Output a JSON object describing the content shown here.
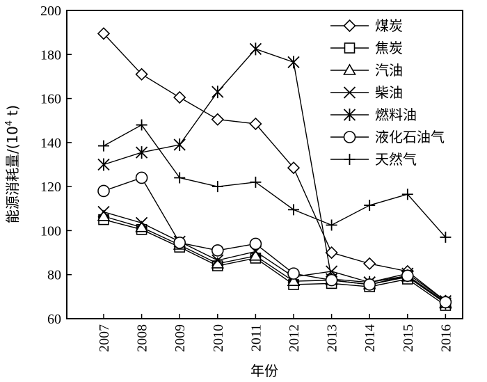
{
  "chart_data": {
    "type": "line",
    "xlabel": "年份",
    "ylabel_main": "能源消耗量/(10",
    "ylabel_sup": "4",
    "ylabel_unit": " t)",
    "ylim": [
      60,
      200
    ],
    "yticks": [
      60,
      80,
      100,
      120,
      140,
      160,
      180,
      200
    ],
    "x": [
      "2007",
      "2008",
      "2009",
      "2010",
      "2011",
      "2012",
      "2013",
      "2014",
      "2015",
      "2016"
    ],
    "legend_position": "top-right",
    "grid": false,
    "series": [
      {
        "name": "煤炭",
        "marker": "diamond",
        "values": [
          189.5,
          171,
          160.5,
          150.5,
          148.5,
          128.5,
          90,
          85,
          81.5,
          68
        ]
      },
      {
        "name": "焦炭",
        "marker": "square",
        "values": [
          105,
          100.5,
          92.5,
          84,
          87.5,
          75.5,
          76,
          74.5,
          78,
          66
        ]
      },
      {
        "name": "汽油",
        "marker": "triangle",
        "values": [
          106.5,
          101.5,
          93.5,
          85,
          88.5,
          77,
          77.5,
          75.5,
          79,
          67
        ]
      },
      {
        "name": "柴油",
        "marker": "x",
        "values": [
          108.5,
          103.5,
          95,
          86.5,
          90.5,
          79,
          81.5,
          76.5,
          80.5,
          68
        ]
      },
      {
        "name": "燃料油",
        "marker": "asterisk",
        "values": [
          130,
          135.5,
          139,
          163,
          182.5,
          176.5,
          78,
          76.5,
          79.5,
          67
        ]
      },
      {
        "name": "液化石油气",
        "marker": "circle",
        "values": [
          118,
          124,
          94.5,
          91,
          94,
          80.5,
          77.5,
          75.5,
          79.5,
          67.5
        ]
      },
      {
        "name": "天然气",
        "marker": "plus",
        "values": [
          138.5,
          148,
          124,
          120,
          122,
          109.5,
          102.5,
          111.5,
          116.5,
          97
        ]
      }
    ]
  }
}
